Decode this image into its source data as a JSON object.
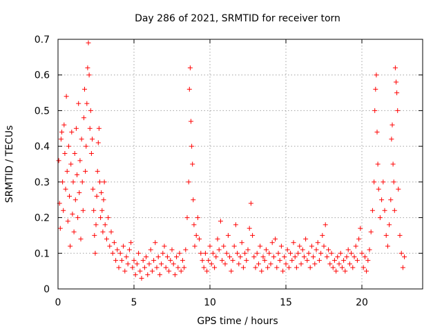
{
  "chart_data": {
    "type": "scatter",
    "title": "Day 286 of 2021, SRMTID for receiver torn",
    "xlabel": "GPS time / hours",
    "ylabel": "SRMTID / TECUs",
    "xlim": [
      0,
      24
    ],
    "ylim": [
      0,
      0.7
    ],
    "xticks": [
      0,
      5,
      10,
      15,
      20
    ],
    "yticks": [
      0,
      0.1,
      0.2,
      0.3,
      0.4,
      0.5,
      0.6,
      0.7
    ],
    "grid": true,
    "marker": "+",
    "color": "#ff0000",
    "series": [
      {
        "name": "SRMTID",
        "points": [
          [
            0.05,
            0.36
          ],
          [
            0.1,
            0.24
          ],
          [
            0.15,
            0.17
          ],
          [
            0.2,
            0.42
          ],
          [
            0.25,
            0.44
          ],
          [
            0.3,
            0.3
          ],
          [
            0.35,
            0.22
          ],
          [
            0.4,
            0.46
          ],
          [
            0.45,
            0.38
          ],
          [
            0.5,
            0.28
          ],
          [
            0.55,
            0.54
          ],
          [
            0.6,
            0.33
          ],
          [
            0.65,
            0.19
          ],
          [
            0.7,
            0.4
          ],
          [
            0.75,
            0.26
          ],
          [
            0.8,
            0.12
          ],
          [
            0.85,
            0.35
          ],
          [
            0.9,
            0.44
          ],
          [
            0.95,
            0.21
          ],
          [
            1.0,
            0.3
          ],
          [
            1.05,
            0.16
          ],
          [
            1.1,
            0.38
          ],
          [
            1.15,
            0.25
          ],
          [
            1.2,
            0.45
          ],
          [
            1.25,
            0.32
          ],
          [
            1.3,
            0.2
          ],
          [
            1.35,
            0.52
          ],
          [
            1.4,
            0.27
          ],
          [
            1.45,
            0.36
          ],
          [
            1.5,
            0.14
          ],
          [
            1.55,
            0.42
          ],
          [
            1.6,
            0.3
          ],
          [
            1.65,
            0.22
          ],
          [
            1.7,
            0.48
          ],
          [
            1.75,
            0.56
          ],
          [
            1.8,
            0.33
          ],
          [
            1.85,
            0.4
          ],
          [
            1.9,
            0.52
          ],
          [
            1.95,
            0.62
          ],
          [
            2.0,
            0.69
          ],
          [
            2.05,
            0.6
          ],
          [
            2.1,
            0.45
          ],
          [
            2.15,
            0.5
          ],
          [
            2.2,
            0.38
          ],
          [
            2.25,
            0.42
          ],
          [
            2.3,
            0.28
          ],
          [
            2.35,
            0.22
          ],
          [
            2.4,
            0.15
          ],
          [
            2.45,
            0.1
          ],
          [
            2.5,
            0.18
          ],
          [
            2.55,
            0.26
          ],
          [
            2.6,
            0.33
          ],
          [
            2.65,
            0.41
          ],
          [
            2.7,
            0.45
          ],
          [
            2.75,
            0.3
          ],
          [
            2.8,
            0.2
          ],
          [
            2.85,
            0.27
          ],
          [
            2.9,
            0.22
          ],
          [
            2.95,
            0.16
          ],
          [
            3.0,
            0.25
          ],
          [
            3.05,
            0.3
          ],
          [
            3.1,
            0.18
          ],
          [
            3.2,
            0.14
          ],
          [
            3.3,
            0.2
          ],
          [
            3.4,
            0.12
          ],
          [
            3.5,
            0.16
          ],
          [
            3.6,
            0.1
          ],
          [
            3.7,
            0.13
          ],
          [
            3.8,
            0.08
          ],
          [
            3.9,
            0.11
          ],
          [
            4.0,
            0.06
          ],
          [
            4.1,
            0.1
          ],
          [
            4.2,
            0.08
          ],
          [
            4.3,
            0.12
          ],
          [
            4.4,
            0.05
          ],
          [
            4.5,
            0.09
          ],
          [
            4.6,
            0.07
          ],
          [
            4.7,
            0.11
          ],
          [
            4.8,
            0.13
          ],
          [
            4.9,
            0.06
          ],
          [
            5.0,
            0.08
          ],
          [
            5.1,
            0.04
          ],
          [
            5.2,
            0.07
          ],
          [
            5.3,
            0.1
          ],
          [
            5.4,
            0.05
          ],
          [
            5.5,
            0.03
          ],
          [
            5.6,
            0.08
          ],
          [
            5.7,
            0.06
          ],
          [
            5.8,
            0.09
          ],
          [
            5.9,
            0.04
          ],
          [
            6.0,
            0.07
          ],
          [
            6.1,
            0.11
          ],
          [
            6.2,
            0.05
          ],
          [
            6.3,
            0.08
          ],
          [
            6.4,
            0.13
          ],
          [
            6.5,
            0.06
          ],
          [
            6.6,
            0.09
          ],
          [
            6.7,
            0.04
          ],
          [
            6.8,
            0.07
          ],
          [
            6.9,
            0.1
          ],
          [
            7.0,
            0.12
          ],
          [
            7.1,
            0.06
          ],
          [
            7.2,
            0.09
          ],
          [
            7.3,
            0.05
          ],
          [
            7.4,
            0.08
          ],
          [
            7.5,
            0.11
          ],
          [
            7.6,
            0.07
          ],
          [
            7.7,
            0.04
          ],
          [
            7.8,
            0.09
          ],
          [
            7.9,
            0.06
          ],
          [
            8.0,
            0.1
          ],
          [
            8.1,
            0.05
          ],
          [
            8.2,
            0.08
          ],
          [
            8.3,
            0.06
          ],
          [
            8.4,
            0.11
          ],
          [
            8.5,
            0.2
          ],
          [
            8.6,
            0.3
          ],
          [
            8.65,
            0.56
          ],
          [
            8.7,
            0.62
          ],
          [
            8.75,
            0.47
          ],
          [
            8.8,
            0.4
          ],
          [
            8.85,
            0.35
          ],
          [
            8.9,
            0.25
          ],
          [
            8.95,
            0.18
          ],
          [
            9.0,
            0.12
          ],
          [
            9.1,
            0.15
          ],
          [
            9.2,
            0.2
          ],
          [
            9.3,
            0.14
          ],
          [
            9.4,
            0.1
          ],
          [
            9.5,
            0.08
          ],
          [
            9.6,
            0.06
          ],
          [
            9.7,
            0.1
          ],
          [
            9.8,
            0.05
          ],
          [
            9.9,
            0.08
          ],
          [
            10.0,
            0.12
          ],
          [
            10.1,
            0.07
          ],
          [
            10.2,
            0.1
          ],
          [
            10.3,
            0.06
          ],
          [
            10.4,
            0.09
          ],
          [
            10.5,
            0.14
          ],
          [
            10.6,
            0.11
          ],
          [
            10.7,
            0.19
          ],
          [
            10.8,
            0.08
          ],
          [
            10.9,
            0.12
          ],
          [
            11.0,
            0.07
          ],
          [
            11.1,
            0.1
          ],
          [
            11.2,
            0.15
          ],
          [
            11.3,
            0.09
          ],
          [
            11.4,
            0.05
          ],
          [
            11.5,
            0.08
          ],
          [
            11.6,
            0.12
          ],
          [
            11.7,
            0.18
          ],
          [
            11.8,
            0.1
          ],
          [
            11.9,
            0.07
          ],
          [
            12.0,
            0.09
          ],
          [
            12.1,
            0.13
          ],
          [
            12.2,
            0.06
          ],
          [
            12.3,
            0.1
          ],
          [
            12.4,
            0.08
          ],
          [
            12.5,
            0.11
          ],
          [
            12.6,
            0.17
          ],
          [
            12.7,
            0.24
          ],
          [
            12.8,
            0.15
          ],
          [
            12.9,
            0.09
          ],
          [
            13.0,
            0.06
          ],
          [
            13.1,
            0.1
          ],
          [
            13.2,
            0.07
          ],
          [
            13.3,
            0.12
          ],
          [
            13.4,
            0.05
          ],
          [
            13.5,
            0.09
          ],
          [
            13.6,
            0.08
          ],
          [
            13.7,
            0.11
          ],
          [
            13.8,
            0.06
          ],
          [
            13.9,
            0.1
          ],
          [
            14.0,
            0.07
          ],
          [
            14.1,
            0.13
          ],
          [
            14.2,
            0.09
          ],
          [
            14.3,
            0.14
          ],
          [
            14.4,
            0.06
          ],
          [
            14.5,
            0.1
          ],
          [
            14.6,
            0.08
          ],
          [
            14.7,
            0.12
          ],
          [
            14.8,
            0.05
          ],
          [
            14.9,
            0.09
          ],
          [
            15.0,
            0.07
          ],
          [
            15.1,
            0.11
          ],
          [
            15.2,
            0.06
          ],
          [
            15.3,
            0.1
          ],
          [
            15.4,
            0.08
          ],
          [
            15.5,
            0.13
          ],
          [
            15.6,
            0.09
          ],
          [
            15.7,
            0.06
          ],
          [
            15.8,
            0.1
          ],
          [
            15.9,
            0.12
          ],
          [
            16.0,
            0.07
          ],
          [
            16.1,
            0.11
          ],
          [
            16.2,
            0.09
          ],
          [
            16.3,
            0.14
          ],
          [
            16.4,
            0.08
          ],
          [
            16.5,
            0.1
          ],
          [
            16.6,
            0.06
          ],
          [
            16.7,
            0.12
          ],
          [
            16.8,
            0.09
          ],
          [
            16.9,
            0.07
          ],
          [
            17.0,
            0.11
          ],
          [
            17.1,
            0.13
          ],
          [
            17.2,
            0.08
          ],
          [
            17.3,
            0.1
          ],
          [
            17.4,
            0.15
          ],
          [
            17.5,
            0.12
          ],
          [
            17.6,
            0.18
          ],
          [
            17.7,
            0.09
          ],
          [
            17.8,
            0.11
          ],
          [
            17.9,
            0.07
          ],
          [
            18.0,
            0.1
          ],
          [
            18.1,
            0.06
          ],
          [
            18.2,
            0.08
          ],
          [
            18.3,
            0.05
          ],
          [
            18.4,
            0.09
          ],
          [
            18.5,
            0.07
          ],
          [
            18.6,
            0.1
          ],
          [
            18.7,
            0.06
          ],
          [
            18.8,
            0.08
          ],
          [
            18.9,
            0.05
          ],
          [
            19.0,
            0.09
          ],
          [
            19.1,
            0.11
          ],
          [
            19.2,
            0.07
          ],
          [
            19.3,
            0.1
          ],
          [
            19.4,
            0.06
          ],
          [
            19.5,
            0.09
          ],
          [
            19.6,
            0.12
          ],
          [
            19.7,
            0.08
          ],
          [
            19.8,
            0.14
          ],
          [
            19.9,
            0.17
          ],
          [
            20.0,
            0.1
          ],
          [
            20.1,
            0.06
          ],
          [
            20.2,
            0.09
          ],
          [
            20.3,
            0.05
          ],
          [
            20.4,
            0.08
          ],
          [
            20.5,
            0.11
          ],
          [
            20.6,
            0.16
          ],
          [
            20.7,
            0.22
          ],
          [
            20.8,
            0.3
          ],
          [
            20.85,
            0.5
          ],
          [
            20.9,
            0.56
          ],
          [
            20.95,
            0.6
          ],
          [
            21.0,
            0.44
          ],
          [
            21.05,
            0.35
          ],
          [
            21.1,
            0.28
          ],
          [
            21.2,
            0.2
          ],
          [
            21.3,
            0.25
          ],
          [
            21.4,
            0.3
          ],
          [
            21.5,
            0.22
          ],
          [
            21.6,
            0.15
          ],
          [
            21.7,
            0.12
          ],
          [
            21.8,
            0.18
          ],
          [
            21.9,
            0.25
          ],
          [
            21.95,
            0.42
          ],
          [
            22.0,
            0.46
          ],
          [
            22.05,
            0.35
          ],
          [
            22.1,
            0.3
          ],
          [
            22.15,
            0.22
          ],
          [
            22.2,
            0.62
          ],
          [
            22.25,
            0.58
          ],
          [
            22.3,
            0.55
          ],
          [
            22.35,
            0.5
          ],
          [
            22.4,
            0.28
          ],
          [
            22.5,
            0.15
          ],
          [
            22.6,
            0.1
          ],
          [
            22.7,
            0.06
          ],
          [
            22.8,
            0.09
          ]
        ]
      }
    ]
  }
}
